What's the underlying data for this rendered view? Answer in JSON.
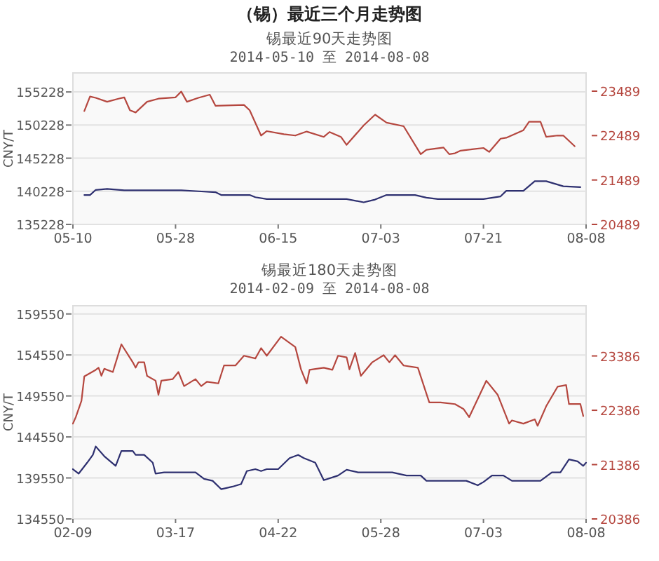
{
  "chart_data": [
    {
      "type": "line",
      "title": "锡最近90天走势图",
      "subtitle": "2014-05-10 至 2014-08-08",
      "annotations": [
        "（锡）最近三个月走势图"
      ],
      "ylabel": "CNY/T",
      "grid": "y",
      "xlim": [
        "2014-05-10",
        "2014-08-08"
      ],
      "xticks": [
        {
          "value": "2014-05-10",
          "label": "05-10"
        },
        {
          "value": "2014-05-28",
          "label": "05-28"
        },
        {
          "value": "2014-06-15",
          "label": "06-15"
        },
        {
          "value": "2014-07-03",
          "label": "07-03"
        },
        {
          "value": "2014-07-21",
          "label": "07-21"
        },
        {
          "value": "2014-08-08",
          "label": "08-08"
        }
      ],
      "ylim": [
        135228,
        158100
      ],
      "yticks": [
        135228,
        140228,
        145228,
        150228,
        155228
      ],
      "y2lim": [
        20489,
        23900
      ],
      "y2ticks": [
        20489,
        21489,
        22489,
        23489
      ],
      "series": [
        {
          "color": "#2e3070",
          "axis": "y",
          "x": [
            "2014-05-12",
            "2014-05-13",
            "2014-05-14",
            "2014-05-16",
            "2014-05-19",
            "2014-05-29",
            "2014-06-01",
            "2014-06-04",
            "2014-06-05",
            "2014-06-10",
            "2014-06-11",
            "2014-06-13",
            "2014-06-27",
            "2014-06-30",
            "2014-07-02",
            "2014-07-04",
            "2014-07-09",
            "2014-07-11",
            "2014-07-13",
            "2014-07-21",
            "2014-07-24",
            "2014-07-25",
            "2014-07-28",
            "2014-07-30",
            "2014-08-01",
            "2014-08-04",
            "2014-08-07"
          ],
          "values": [
            139670,
            139670,
            140440,
            140580,
            140370,
            140370,
            140230,
            140090,
            139670,
            139670,
            139330,
            139050,
            139050,
            138560,
            138980,
            139670,
            139670,
            139260,
            139050,
            139050,
            139460,
            140300,
            140300,
            141750,
            141750,
            140990,
            140850
          ]
        },
        {
          "color": "#b5473f",
          "axis": "y2",
          "x": [
            "2014-05-12",
            "2014-05-13",
            "2014-05-14",
            "2014-05-16",
            "2014-05-18",
            "2014-05-19",
            "2014-05-20",
            "2014-05-21",
            "2014-05-23",
            "2014-05-25",
            "2014-05-28",
            "2014-05-29",
            "2014-05-30",
            "2014-06-01",
            "2014-06-03",
            "2014-06-04",
            "2014-06-09",
            "2014-06-10",
            "2014-06-12",
            "2014-06-13",
            "2014-06-16",
            "2014-06-18",
            "2014-06-20",
            "2014-06-23",
            "2014-06-24",
            "2014-06-26",
            "2014-06-27",
            "2014-06-30",
            "2014-07-02",
            "2014-07-04",
            "2014-07-07",
            "2014-07-10",
            "2014-07-11",
            "2014-07-14",
            "2014-07-15",
            "2014-07-16",
            "2014-07-17",
            "2014-07-19",
            "2014-07-21",
            "2014-07-22",
            "2014-07-24",
            "2014-07-25",
            "2014-07-28",
            "2014-07-29",
            "2014-07-31",
            "2014-08-01",
            "2014-08-03",
            "2014-08-04",
            "2014-08-06"
          ],
          "values": [
            23040,
            23370,
            23340,
            23250,
            23320,
            23350,
            23060,
            23010,
            23250,
            23320,
            23350,
            23480,
            23250,
            23340,
            23410,
            23160,
            23180,
            23060,
            22490,
            22590,
            22520,
            22490,
            22580,
            22460,
            22570,
            22460,
            22280,
            22720,
            22960,
            22780,
            22700,
            22070,
            22170,
            22220,
            22070,
            22090,
            22150,
            22180,
            22210,
            22120,
            22420,
            22440,
            22610,
            22800,
            22800,
            22460,
            22490,
            22490,
            22250
          ]
        }
      ]
    },
    {
      "type": "line",
      "title": "锡最近180天走势图",
      "subtitle": "2014-02-09 至 2014-08-08",
      "ylabel": "CNY/T",
      "grid": "y",
      "xlim": [
        "2014-02-09",
        "2014-08-08"
      ],
      "xticks": [
        {
          "value": "2014-02-09",
          "label": "02-09"
        },
        {
          "value": "2014-03-17",
          "label": "03-17"
        },
        {
          "value": "2014-04-22",
          "label": "04-22"
        },
        {
          "value": "2014-05-28",
          "label": "05-28"
        },
        {
          "value": "2014-07-03",
          "label": "07-03"
        },
        {
          "value": "2014-08-08",
          "label": "08-08"
        }
      ],
      "ylim": [
        134550,
        160550
      ],
      "yticks": [
        134550,
        139550,
        144550,
        149550,
        154550,
        159550
      ],
      "y2lim": [
        20386,
        24310
      ],
      "y2ticks": [
        20386,
        21386,
        22386,
        23386
      ],
      "series": [
        {
          "color": "#2e3070",
          "axis": "y",
          "x": [
            "2014-02-09",
            "2014-02-11",
            "2014-02-14",
            "2014-02-16",
            "2014-02-17",
            "2014-02-20",
            "2014-02-24",
            "2014-02-26",
            "2014-03-02",
            "2014-03-03",
            "2014-03-06",
            "2014-03-09",
            "2014-03-10",
            "2014-03-13",
            "2014-03-24",
            "2014-03-27",
            "2014-03-30",
            "2014-04-02",
            "2014-04-06",
            "2014-04-09",
            "2014-04-11",
            "2014-04-14",
            "2014-04-16",
            "2014-04-18",
            "2014-04-22",
            "2014-04-26",
            "2014-04-29",
            "2014-05-01",
            "2014-05-05",
            "2014-05-08",
            "2014-05-13",
            "2014-05-16",
            "2014-05-20",
            "2014-06-01",
            "2014-06-06",
            "2014-06-11",
            "2014-06-13",
            "2014-06-27",
            "2014-07-01",
            "2014-07-03",
            "2014-07-06",
            "2014-07-10",
            "2014-07-13",
            "2014-07-23",
            "2014-07-27",
            "2014-07-30",
            "2014-08-02",
            "2014-08-05",
            "2014-08-07",
            "2014-08-08"
          ],
          "values": [
            140620,
            140070,
            141410,
            142360,
            143390,
            142200,
            141020,
            142830,
            142830,
            142360,
            142360,
            141410,
            140070,
            140230,
            140230,
            139440,
            139200,
            138180,
            138490,
            138810,
            140390,
            140620,
            140390,
            140620,
            140620,
            141970,
            142360,
            141970,
            141410,
            139280,
            139840,
            140550,
            140230,
            140230,
            139840,
            139840,
            139200,
            139200,
            138650,
            139050,
            139840,
            139840,
            139200,
            139200,
            140230,
            140230,
            141810,
            141570,
            141020,
            141410
          ]
        },
        {
          "color": "#b5473f",
          "axis": "y2",
          "x": [
            "2014-02-09",
            "2014-02-10",
            "2014-02-12",
            "2014-02-13",
            "2014-02-17",
            "2014-02-18",
            "2014-02-19",
            "2014-02-20",
            "2014-02-23",
            "2014-02-26",
            "2014-03-02",
            "2014-03-03",
            "2014-03-04",
            "2014-03-06",
            "2014-03-07",
            "2014-03-10",
            "2014-03-11",
            "2014-03-12",
            "2014-03-16",
            "2014-03-18",
            "2014-03-20",
            "2014-03-24",
            "2014-03-26",
            "2014-03-28",
            "2014-04-01",
            "2014-04-03",
            "2014-04-07",
            "2014-04-10",
            "2014-04-14",
            "2014-04-16",
            "2014-04-18",
            "2014-04-23",
            "2014-04-28",
            "2014-04-30",
            "2014-05-02",
            "2014-05-03",
            "2014-05-08",
            "2014-05-11",
            "2014-05-13",
            "2014-05-16",
            "2014-05-17",
            "2014-05-19",
            "2014-05-21",
            "2014-05-25",
            "2014-05-29",
            "2014-05-31",
            "2014-06-02",
            "2014-06-05",
            "2014-06-10",
            "2014-06-14",
            "2014-06-18",
            "2014-06-23",
            "2014-06-26",
            "2014-06-28",
            "2014-07-04",
            "2014-07-08",
            "2014-07-12",
            "2014-07-13",
            "2014-07-17",
            "2014-07-21",
            "2014-07-22",
            "2014-07-25",
            "2014-07-29",
            "2014-08-01",
            "2014-08-02",
            "2014-08-06",
            "2014-08-07"
          ],
          "values": [
            22140,
            22260,
            22560,
            23010,
            23130,
            23170,
            23020,
            23150,
            23090,
            23600,
            23270,
            23170,
            23270,
            23270,
            23020,
            22930,
            22670,
            22930,
            22960,
            23090,
            22830,
            22960,
            22830,
            22910,
            22880,
            23210,
            23210,
            23390,
            23340,
            23530,
            23390,
            23740,
            23550,
            23140,
            22880,
            23130,
            23170,
            23130,
            23390,
            23360,
            23140,
            23440,
            23020,
            23270,
            23400,
            23270,
            23400,
            23210,
            23170,
            22530,
            22530,
            22500,
            22410,
            22260,
            22930,
            22670,
            22140,
            22200,
            22140,
            22220,
            22100,
            22460,
            22820,
            22850,
            22500,
            22500,
            22280
          ]
        }
      ]
    }
  ]
}
